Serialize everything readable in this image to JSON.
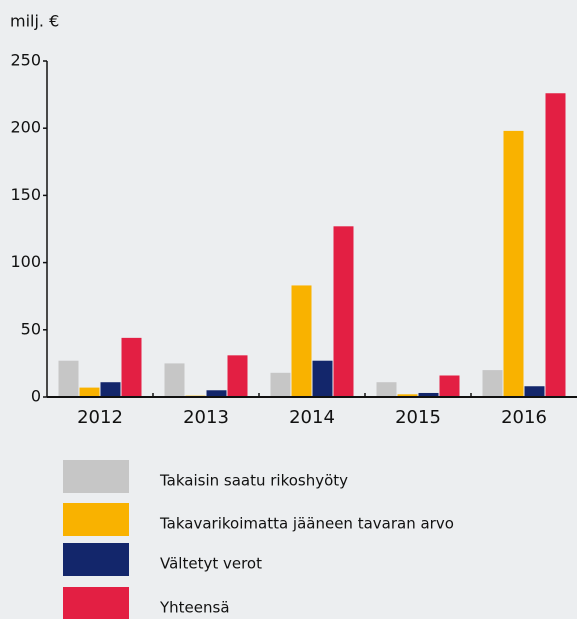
{
  "chart_data": {
    "type": "bar",
    "y_label": "milj. €",
    "categories": [
      "2012",
      "2013",
      "2014",
      "2015",
      "2016"
    ],
    "series": [
      {
        "name": "Takaisin saatu rikoshyöty",
        "color": "#c6c6c6",
        "values": [
          27,
          25,
          18,
          11,
          20
        ]
      },
      {
        "name": "Takavarikoimatta jääneen tavaran arvo",
        "color": "#f9b200",
        "values": [
          7,
          1,
          83,
          2,
          198
        ]
      },
      {
        "name": "Vältetyt verot",
        "color": "#13266b",
        "values": [
          11,
          5,
          27,
          3,
          8
        ]
      },
      {
        "name": "Yhteensä",
        "color": "#e31f43",
        "values": [
          44,
          31,
          127,
          16,
          226
        ]
      }
    ],
    "ylim": [
      0,
      250
    ],
    "yticks": [
      0,
      50,
      100,
      150,
      200,
      250
    ]
  }
}
